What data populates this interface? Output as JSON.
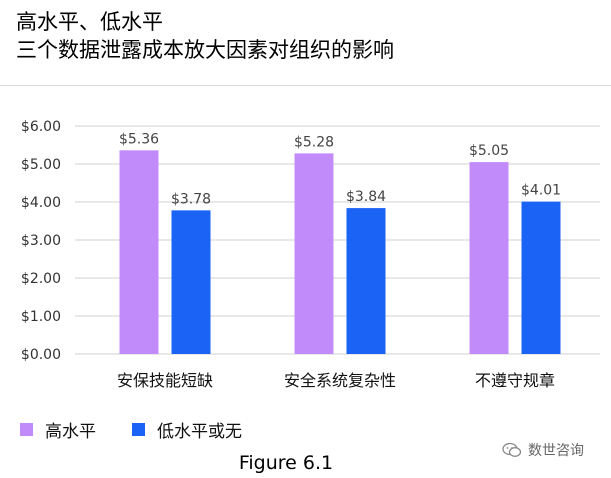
{
  "title": {
    "line1": "高水平、低水平",
    "line2": "三个数据泄露成本放大因素对组织的影响"
  },
  "chart_data": {
    "type": "bar",
    "categories": [
      "安保技能短缺",
      "安全系统复杂性",
      "不遵守规章"
    ],
    "series": [
      {
        "name": "高水平",
        "values": [
          5.36,
          5.28,
          5.05
        ],
        "color": "#c18cfa",
        "labels": [
          "$5.36",
          "$5.28",
          "$5.05"
        ]
      },
      {
        "name": "低水平或无",
        "values": [
          3.78,
          3.84,
          4.01
        ],
        "color": "#1a63f5",
        "labels": [
          "$3.78",
          "$3.84",
          "$4.01"
        ]
      }
    ],
    "ylim": [
      0,
      6
    ],
    "yticks": [
      0,
      1,
      2,
      3,
      4,
      5,
      6
    ],
    "ytick_labels": [
      "$0.00",
      "$1.00",
      "$2.00",
      "$3.00",
      "$4.00",
      "$5.00",
      "$6.00"
    ],
    "grid": true,
    "legend_position": "bottom-left"
  },
  "legend": {
    "high_label": "高水平",
    "low_label": "低水平或无",
    "high_color": "#c18cfa",
    "low_color": "#1a63f5"
  },
  "caption": "Figure 6.1",
  "watermark": {
    "text": "数世咨询",
    "icon": "wechat-icon"
  }
}
